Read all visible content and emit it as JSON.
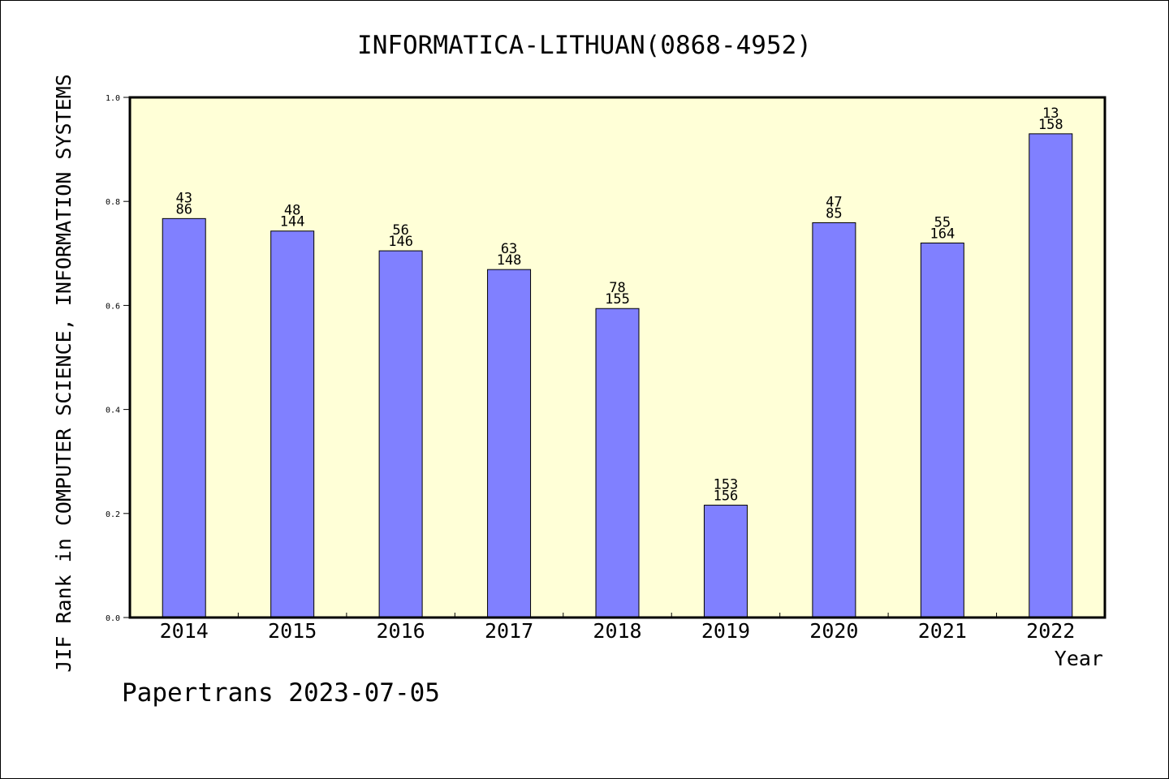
{
  "chart_data": {
    "type": "bar",
    "title": "INFORMATICA-LITHUAN(0868-4952)",
    "xlabel": "Year",
    "ylabel": "JIF Rank in COMPUTER SCIENCE, INFORMATION SYSTEMS",
    "ylim": [
      0,
      1.0
    ],
    "yticks": [
      "0.0",
      "0.2",
      "0.4",
      "0.6",
      "0.8",
      "1.0"
    ],
    "categories": [
      "2014",
      "2015",
      "2016",
      "2017",
      "2018",
      "2019",
      "2020",
      "2021",
      "2022"
    ],
    "values": [
      0.767,
      0.743,
      0.705,
      0.669,
      0.594,
      0.216,
      0.759,
      0.72,
      0.93
    ],
    "rank_labels": [
      "43",
      "48",
      "56",
      "63",
      "78",
      "153",
      "47",
      "55",
      "13"
    ],
    "total_labels": [
      "86",
      "144",
      "146",
      "148",
      "155",
      "156",
      "85",
      "164",
      "158"
    ],
    "grid": false,
    "colors": {
      "bar": "#8080ff",
      "plot_background": "#ffffd7",
      "axis": "#000000"
    }
  },
  "footer": {
    "watermark": "Papertrans 2023-07-05"
  }
}
